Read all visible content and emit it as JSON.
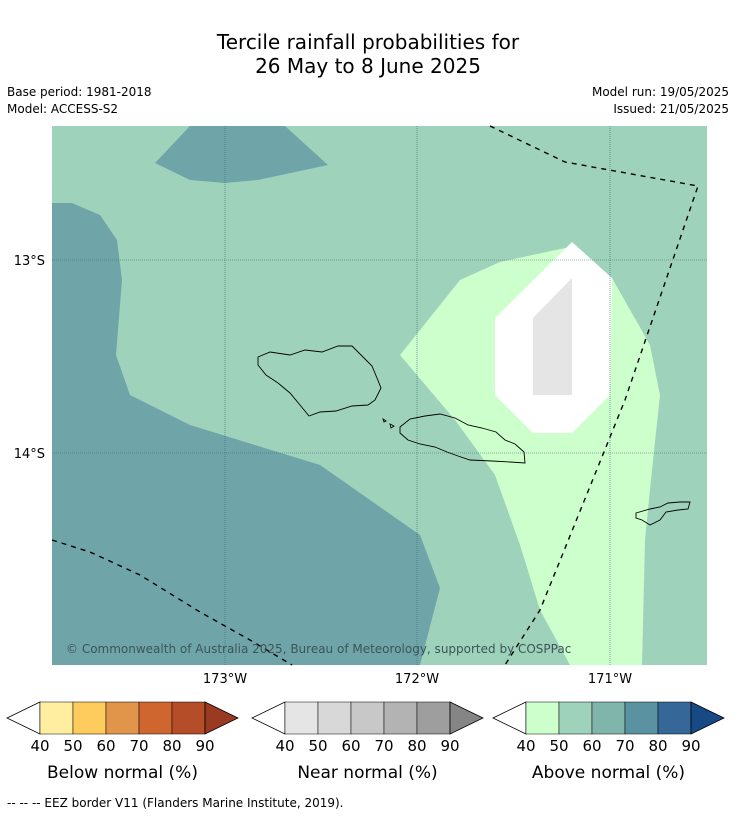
{
  "title_line1": "Tercile rainfall probabilities for",
  "title_line2": "26 May to 8 June 2025",
  "base_period": "Base period: 1981-2018",
  "model": "Model: ACCESS-S2",
  "model_run": "Model run: 19/05/2025",
  "issued": "Issued: 21/05/2025",
  "lat_ticks": [
    "13°S",
    "14°S"
  ],
  "lon_ticks": [
    "173°W",
    "172°W",
    "171°W"
  ],
  "copyright": "© Commonwealth of Australia 2025, Bureau of Meteorology, supported by COSPPac",
  "colorbars": [
    {
      "label": "Below normal (%)",
      "ticks": [
        "40",
        "50",
        "60",
        "70",
        "80",
        "90"
      ],
      "colors": [
        "#ffeda0",
        "#fecc5c",
        "#e0954a",
        "#cf6630",
        "#b44d28",
        "#9a3a22"
      ]
    },
    {
      "label": "Near normal (%)",
      "ticks": [
        "40",
        "50",
        "60",
        "70",
        "80",
        "90"
      ],
      "colors": [
        "#e5e5e5",
        "#d8d8d8",
        "#c8c8c8",
        "#b3b3b3",
        "#9e9e9e",
        "#858585"
      ]
    },
    {
      "label": "Above normal (%)",
      "ticks": [
        "40",
        "50",
        "60",
        "70",
        "80",
        "90"
      ],
      "colors": [
        "#ccffcc",
        "#9fd2bb",
        "#7fb5ab",
        "#5a92a2",
        "#356898",
        "#174a85"
      ]
    }
  ],
  "footnote": "--  --  -- EEZ border V11 (Flanders Marine Institute, 2019).",
  "legend_colors": {
    "above_50": "#9fd2bb",
    "above_60": "#6fa5a9",
    "above_40": "#ccffcc",
    "near_40": "#e5e5e5"
  }
}
